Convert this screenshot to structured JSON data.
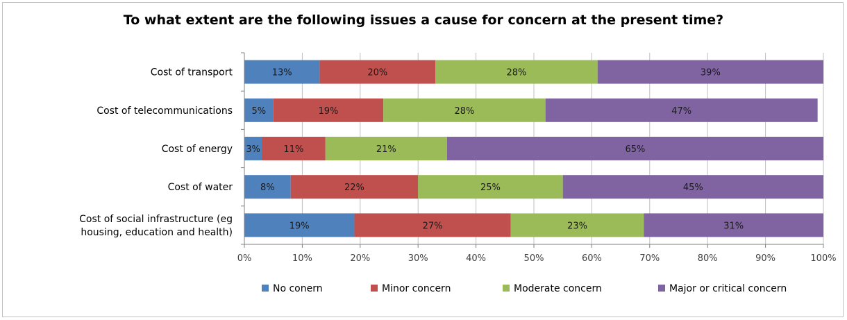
{
  "chart_data": {
    "type": "bar",
    "orientation": "horizontal",
    "stacked": true,
    "title": "To what extent are the following issues a cause for concern at the present time?",
    "categories": [
      [
        "Cost of transport"
      ],
      [
        "Cost of telecommunications"
      ],
      [
        "Cost of energy"
      ],
      [
        "Cost of water"
      ],
      [
        "Cost of social infrastructure (eg",
        "housing, education and health)"
      ]
    ],
    "series": [
      {
        "name": "No conern",
        "color": "#4f81bd",
        "values": [
          13,
          5,
          3,
          8,
          19
        ]
      },
      {
        "name": "Minor concern",
        "color": "#c0504d",
        "values": [
          20,
          19,
          11,
          22,
          27
        ]
      },
      {
        "name": "Moderate concern",
        "color": "#9bbb59",
        "values": [
          28,
          28,
          21,
          25,
          23
        ]
      },
      {
        "name": "Major or critical concern",
        "color": "#8064a2",
        "values": [
          39,
          47,
          65,
          45,
          31
        ]
      }
    ],
    "xlim": [
      0,
      100
    ],
    "xticks": [
      "0%",
      "10%",
      "20%",
      "30%",
      "40%",
      "50%",
      "60%",
      "70%",
      "80%",
      "90%",
      "100%"
    ],
    "grid": true,
    "legend_position": "bottom",
    "value_suffix": "%"
  }
}
